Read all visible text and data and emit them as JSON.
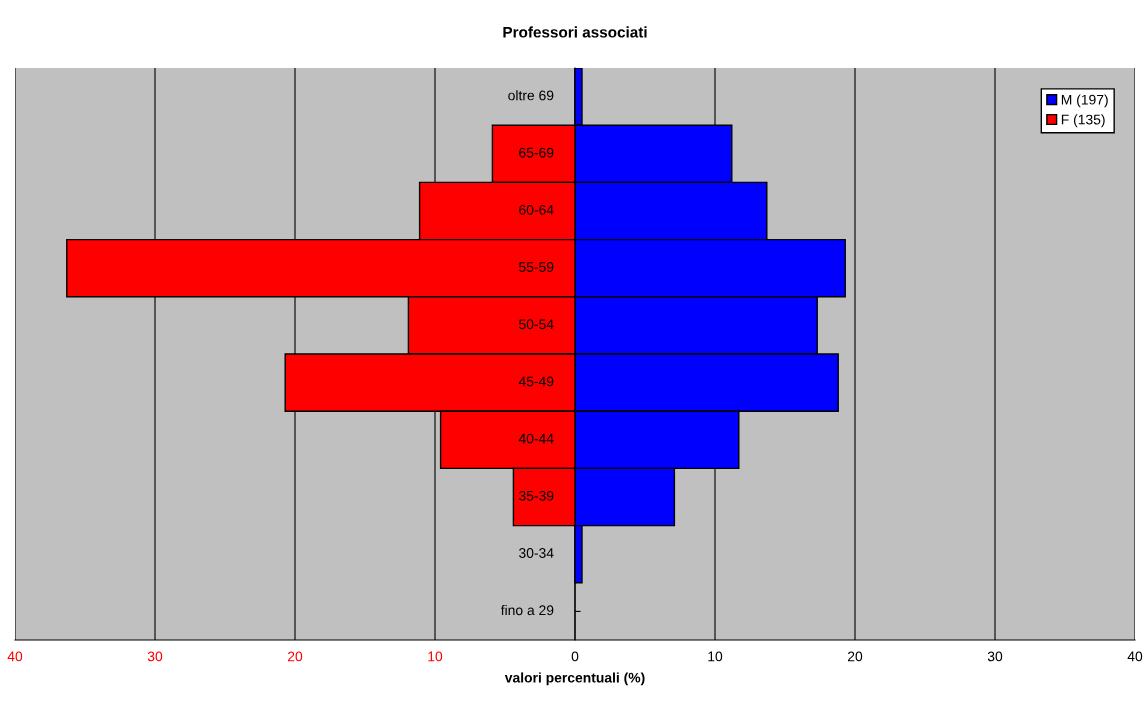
{
  "chart_data": {
    "type": "bar",
    "orientation": "horizontal",
    "title": "Professori associati",
    "xlabel": "valori percentuali (%)",
    "categories": [
      "oltre 69",
      "65-69",
      "60-64",
      "55-59",
      "50-54",
      "45-49",
      "40-44",
      "35-39",
      "30-34",
      "fino a 29"
    ],
    "series": [
      {
        "name": "M (197)",
        "color": "#0000ff",
        "values": [
          0.5,
          11.2,
          13.7,
          19.3,
          17.3,
          18.8,
          11.7,
          7.1,
          0.5,
          null
        ]
      },
      {
        "name": "F (135)",
        "color": "#ff0000",
        "values": [
          null,
          -5.9,
          -11.1,
          -36.3,
          -11.9,
          -20.7,
          -9.6,
          -4.4,
          null,
          null
        ]
      }
    ],
    "xlim": [
      -40,
      40
    ],
    "xticks": [
      {
        "value": -40,
        "label": "40"
      },
      {
        "value": -30,
        "label": "30"
      },
      {
        "value": -20,
        "label": "20"
      },
      {
        "value": -10,
        "label": "10"
      },
      0,
      10,
      20,
      30,
      40
    ],
    "stacked": true,
    "grid": "x",
    "legend": "top right"
  }
}
